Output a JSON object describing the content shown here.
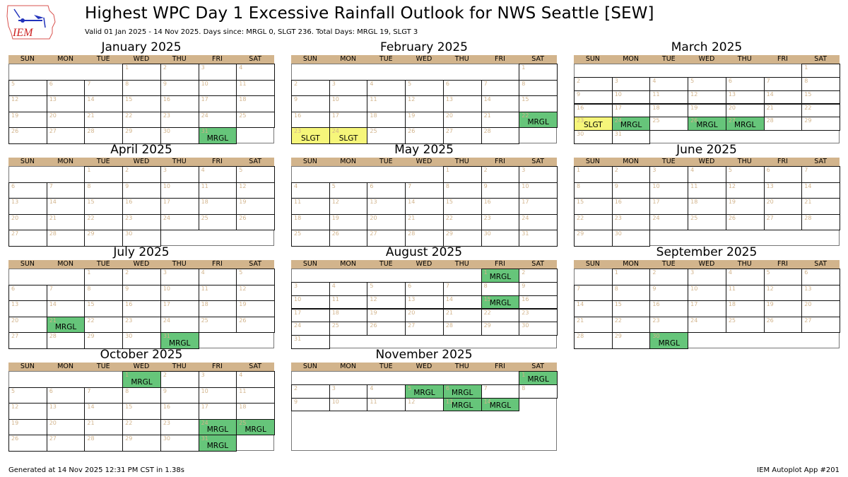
{
  "header": {
    "logo_text": "IEM",
    "title": "Highest WPC Day 1 Excessive Rainfall Outlook for NWS Seattle [SEW]",
    "subtitle": "Valid 01 Jan 2025 - 14 Nov 2025. Days since: MRGL 0, SLGT 236. Total Days: MRGL 19, SLGT 3"
  },
  "weekdays": [
    "SUN",
    "MON",
    "TUE",
    "WED",
    "THU",
    "FRI",
    "SAT"
  ],
  "colors": {
    "header_band": "#d2b48c",
    "MRGL": "#66c57a",
    "SLGT": "#f6f67a",
    "day_number": "#d2b48c"
  },
  "footer": {
    "left": "Generated at 14 Nov 2025 12:31 PM CST in 1.38s",
    "right": "IEM Autoplot App #201"
  },
  "chart_data": {
    "type": "table",
    "title": "Highest WPC Day 1 Excessive Rainfall Outlook for NWS Seattle [SEW]",
    "subtitle": "Valid 01 Jan 2025 - 14 Nov 2025. Days since: MRGL 0, SLGT 236. Total Days: MRGL 19, SLGT 3",
    "legend": {
      "MRGL": "#66c57a",
      "SLGT": "#f6f67a"
    },
    "summary": {
      "days_since": {
        "MRGL": 0,
        "SLGT": 236
      },
      "total_days": {
        "MRGL": 19,
        "SLGT": 3
      }
    },
    "months": [
      {
        "name": "January 2025",
        "first_weekday": 3,
        "days": 31,
        "rows": 5,
        "last_day": 31,
        "events": [
          {
            "day": 31,
            "cat": "MRGL"
          }
        ]
      },
      {
        "name": "February 2025",
        "first_weekday": 6,
        "days": 28,
        "rows": 5,
        "last_day": 28,
        "events": [
          {
            "day": 22,
            "cat": "MRGL"
          },
          {
            "day": 23,
            "cat": "SLGT"
          },
          {
            "day": 24,
            "cat": "SLGT"
          }
        ]
      },
      {
        "name": "March 2025",
        "first_weekday": 6,
        "days": 31,
        "rows": 6,
        "last_day": 31,
        "events": [
          {
            "day": 23,
            "cat": "SLGT"
          },
          {
            "day": 24,
            "cat": "MRGL"
          },
          {
            "day": 26,
            "cat": "MRGL"
          },
          {
            "day": 27,
            "cat": "MRGL"
          }
        ]
      },
      {
        "name": "April 2025",
        "first_weekday": 2,
        "days": 30,
        "rows": 5,
        "last_day": 30,
        "events": []
      },
      {
        "name": "May 2025",
        "first_weekday": 4,
        "days": 31,
        "rows": 5,
        "last_day": 31,
        "events": []
      },
      {
        "name": "June 2025",
        "first_weekday": 0,
        "days": 30,
        "rows": 5,
        "last_day": 30,
        "events": []
      },
      {
        "name": "July 2025",
        "first_weekday": 2,
        "days": 31,
        "rows": 5,
        "last_day": 31,
        "events": [
          {
            "day": 21,
            "cat": "MRGL"
          },
          {
            "day": 31,
            "cat": "MRGL"
          }
        ]
      },
      {
        "name": "August 2025",
        "first_weekday": 5,
        "days": 31,
        "rows": 6,
        "last_day": 31,
        "events": [
          {
            "day": 1,
            "cat": "MRGL"
          },
          {
            "day": 15,
            "cat": "MRGL"
          }
        ]
      },
      {
        "name": "September 2025",
        "first_weekday": 1,
        "days": 30,
        "rows": 5,
        "last_day": 30,
        "events": [
          {
            "day": 30,
            "cat": "MRGL"
          }
        ]
      },
      {
        "name": "October 2025",
        "first_weekday": 3,
        "days": 31,
        "rows": 5,
        "last_day": 31,
        "events": [
          {
            "day": 1,
            "cat": "MRGL"
          },
          {
            "day": 24,
            "cat": "MRGL"
          },
          {
            "day": 25,
            "cat": "MRGL"
          },
          {
            "day": 31,
            "cat": "MRGL"
          }
        ]
      },
      {
        "name": "November 2025",
        "first_weekday": 6,
        "days": 30,
        "rows": 6,
        "last_day": 14,
        "events": [
          {
            "day": 1,
            "cat": "MRGL"
          },
          {
            "day": 5,
            "cat": "MRGL"
          },
          {
            "day": 6,
            "cat": "MRGL"
          },
          {
            "day": 13,
            "cat": "MRGL"
          },
          {
            "day": 14,
            "cat": "MRGL"
          }
        ]
      }
    ]
  }
}
